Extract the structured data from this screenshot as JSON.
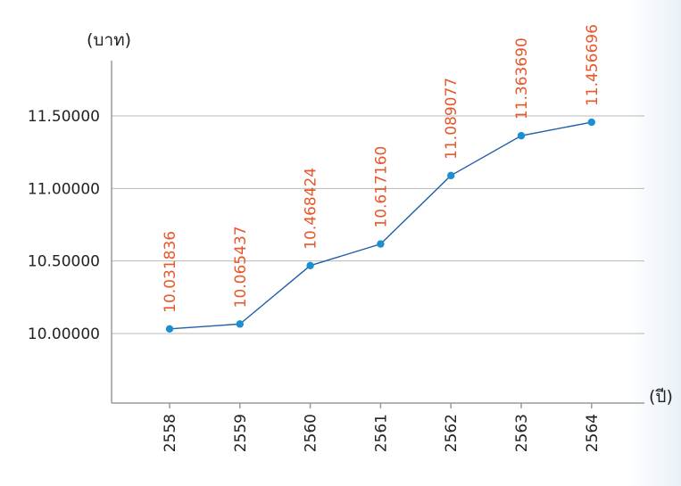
{
  "chart_data": {
    "type": "line",
    "y_unit_label": "(บาท)",
    "x_unit_label": "(ปี)",
    "categories": [
      "2558",
      "2559",
      "2560",
      "2561",
      "2562",
      "2563",
      "2564"
    ],
    "values": [
      10.031836,
      10.065437,
      10.468424,
      10.61716,
      11.089077,
      11.36369,
      11.456696
    ],
    "value_labels": [
      "10.031836",
      "10.065437",
      "10.468424",
      "10.617160",
      "11.089077",
      "11.363690",
      "11.456696"
    ],
    "yticks": [
      10.0,
      10.5,
      11.0,
      11.5
    ],
    "ytick_labels": [
      "10.00000",
      "10.50000",
      "11.00000",
      "11.50000"
    ],
    "grid": true,
    "colors": {
      "line": "#1f5fa8",
      "marker": "#1c8fd0",
      "data_label": "#e8562a",
      "grid": "#b8b8b8",
      "axis": "#9a9a9a",
      "background_tint": "#e9f1f8"
    }
  }
}
